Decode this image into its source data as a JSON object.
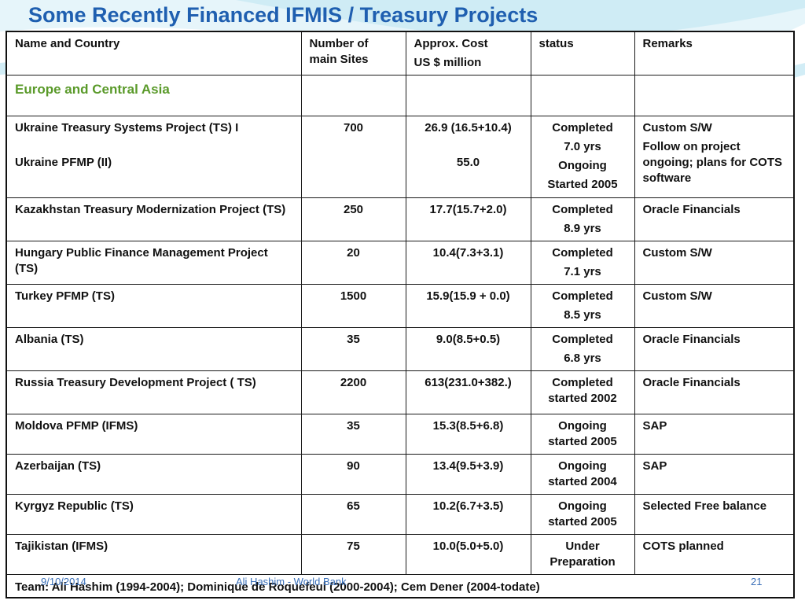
{
  "slide": {
    "title": "Some Recently Financed IFMIS / Treasury Projects",
    "footer": {
      "date": "9/10/2014",
      "author": "Ali Hashim - World Bank",
      "page": "21"
    }
  },
  "table": {
    "headers": {
      "name": "Name and Country",
      "sites": "Number of main Sites",
      "cost_line1": "Approx. Cost",
      "cost_line2": "US $ million",
      "status": "status",
      "remarks": "Remarks"
    },
    "region": "Europe and Central Asia",
    "ukraine": {
      "name1": "Ukraine Treasury Systems Project (TS) I",
      "name2": "Ukraine PFMP  (II)",
      "sites": "700",
      "cost1": "26.9 (16.5+10.4)",
      "cost2": "55.0",
      "status1": "Completed",
      "status2": "7.0  yrs",
      "status3": "Ongoing",
      "status4": "Started 2005",
      "remarks1": "Custom S/W",
      "remarks2": "Follow on project ongoing; plans for COTS software"
    },
    "rows": [
      {
        "name": "Kazakhstan Treasury Modernization Project (TS)",
        "sites": "250",
        "cost": "17.7(15.7+2.0)",
        "status1": "Completed",
        "status2": "8.9  yrs",
        "remarks": "Oracle Financials"
      },
      {
        "name": "Hungary Public Finance Management Project (TS)",
        "sites": "20",
        "cost": "10.4(7.3+3.1)",
        "status1": "Completed",
        "status2": "7.1  yrs",
        "remarks": "Custom S/W"
      },
      {
        "name": "Turkey PFMP (TS)",
        "sites": "1500",
        "cost": "15.9(15.9 + 0.0)",
        "status1": "Completed",
        "status2": "8.5  yrs",
        "remarks": "Custom S/W"
      },
      {
        "name": "Albania (TS)",
        "sites": "35",
        "cost": "9.0(8.5+0.5)",
        "status1": "Completed",
        "status2": "6.8  yrs",
        "remarks": "Oracle Financials"
      },
      {
        "name": "Russia Treasury Development Project ( TS)",
        "sites": "2200",
        "cost": "613(231.0+382.)",
        "status1": "Completed",
        "status2": "started 2002",
        "remarks": "Oracle Financials"
      },
      {
        "name": "Moldova PFMP  (IFMS)",
        "sites": "35",
        "cost": "15.3(8.5+6.8)",
        "status1": "Ongoing",
        "status2": "started 2005",
        "remarks": "SAP"
      },
      {
        "name": "Azerbaijan  (TS)",
        "sites": "90",
        "cost": "13.4(9.5+3.9)",
        "status1": "Ongoing",
        "status2": "started 2004",
        "remarks": "SAP"
      },
      {
        "name": "Kyrgyz Republic (TS)",
        "sites": "65",
        "cost": "10.2(6.7+3.5)",
        "status1": "Ongoing",
        "status2": "started 2005",
        "remarks": "Selected Free balance"
      },
      {
        "name": "Tajikistan (IFMS)",
        "sites": "75",
        "cost": "10.0(5.0+5.0)",
        "status1": "Under",
        "status2": "Preparation",
        "remarks": "COTS planned"
      }
    ],
    "team": "Team: Ali Hashim (1994-2004);  Dominique de Roquefeul (2000-2004); Cem Dener (2004-todate)"
  },
  "colors": {
    "title": "#1f5fb0",
    "region": "#5a9a2a",
    "swoosh": "#bfe6f2"
  }
}
